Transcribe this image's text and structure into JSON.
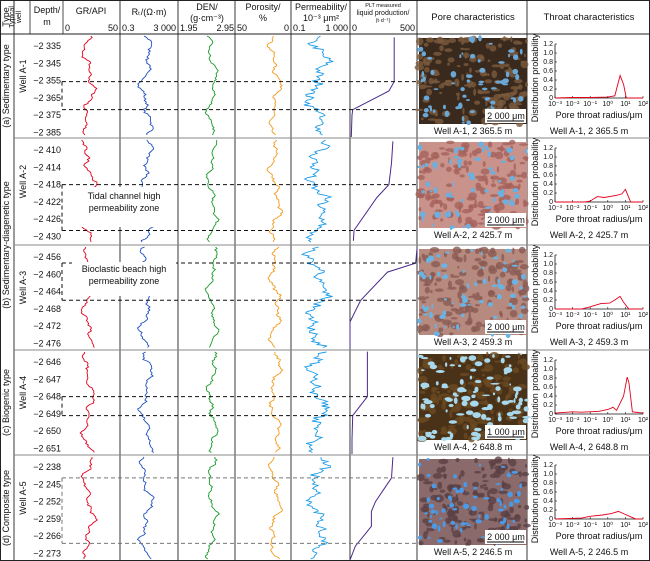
{
  "header": {
    "type": "Type",
    "typical_well_1": "Typical",
    "typical_well_2": "well",
    "depth_1": "Depth/",
    "depth_2": "m",
    "gr": "GR/API",
    "gr_min": "0",
    "gr_max": "50",
    "rt": "Rₜ/(Ω·m)",
    "rt_min": "0.3",
    "rt_max": "3 000",
    "den_1": "DEN/",
    "den_2": "(g·cm⁻³)",
    "den_min": "1.95",
    "den_max": "2.95",
    "por_1": "Porosity/",
    "por_2": "%",
    "por_min": "50",
    "por_max": "0",
    "perm_1": "Permeability/",
    "perm_2": "10⁻³ μm²",
    "perm_min": "0.1",
    "perm_max": "1 000",
    "plt_1": "PLT measured",
    "plt_2": "liquid production/",
    "plt_3": "(t·d⁻¹)",
    "plt_min": "0",
    "plt_max": "500",
    "pore": "Pore characteristics",
    "throat": "Throat characteristics"
  },
  "colors": {
    "gr": "#e3001b",
    "rt": "#1f4fbf",
    "den": "#1a9a2a",
    "por": "#f39a1e",
    "perm": "#1a9ae8",
    "plt": "#4b2a8c",
    "throat": "#e3001b"
  },
  "sections": [
    {
      "type": "(a) Sedimentary type",
      "well": "Well A-1",
      "ticks": [
        "−2 335",
        "−2 345",
        "−2 355",
        "−2 365",
        "−2 375",
        "−2 385"
      ],
      "tick_values": [
        2335,
        2345,
        2355,
        2365,
        2375,
        2385
      ],
      "zone": [
        2355.6,
        2371.8
      ],
      "plt": [
        [
          2330,
          330
        ],
        [
          2355.6,
          330
        ],
        [
          2361,
          290
        ],
        [
          2371.8,
          20
        ],
        [
          2375,
          15
        ],
        [
          2388,
          10
        ]
      ],
      "photo": {
        "base": "#3a2a1e",
        "grain": "#7a5a3c",
        "pore": "#6aa8d8",
        "scale": "2 000 μm"
      },
      "caption": "Well A-1, 2 365.5 m",
      "throat": [
        [
          -3,
          0
        ],
        [
          -2,
          0.01
        ],
        [
          -1,
          0.01
        ],
        [
          0,
          0.02
        ],
        [
          0.4,
          0.05
        ],
        [
          0.7,
          0.5
        ],
        [
          0.9,
          0.3
        ],
        [
          1.05,
          0
        ],
        [
          2,
          0
        ]
      ]
    },
    {
      "type": "(b) Sedimentary-diagenetic type",
      "well": "Well A-2",
      "ticks": [
        "−2 410",
        "−2 414",
        "−2 418",
        "−2 422",
        "−2 426",
        "−2 430"
      ],
      "tick_values": [
        2410,
        2414,
        2418,
        2422,
        2426,
        2430
      ],
      "zone": [
        2418,
        2428.6
      ],
      "annotation": [
        "Tidal channel high",
        "permeability zone"
      ],
      "plt": [
        [
          2408,
          320
        ],
        [
          2413,
          310
        ],
        [
          2418,
          290
        ],
        [
          2421,
          200
        ],
        [
          2428.6,
          30
        ],
        [
          2431,
          25
        ]
      ],
      "photo": {
        "base": "#c9928a",
        "grain": "#a5625a",
        "pore": "#6ab0e0",
        "scale": "2 000 μm"
      },
      "caption": "Well A-2, 2 425.7 m",
      "throat": [
        [
          -3,
          0
        ],
        [
          -1.3,
          0
        ],
        [
          -1,
          0.02
        ],
        [
          -0.6,
          0.12
        ],
        [
          -0.2,
          0.1
        ],
        [
          0.5,
          0.15
        ],
        [
          0.8,
          0.18
        ],
        [
          1.0,
          0.28
        ],
        [
          1.3,
          0
        ],
        [
          2,
          0
        ]
      ]
    },
    {
      "type": "",
      "well": "Well A-3",
      "ticks": [
        "−2 456",
        "−2 460",
        "−2 464",
        "−2 468",
        "−2 472",
        "−2 476"
      ],
      "tick_values": [
        2456,
        2460,
        2464,
        2468,
        2472,
        2476
      ],
      "zone": [
        2457.4,
        2466
      ],
      "annotation": [
        "Bioclastic beach high",
        "permeability zone"
      ],
      "plt": [
        [
          2454,
          500
        ],
        [
          2457.4,
          490
        ],
        [
          2459.5,
          280
        ],
        [
          2466,
          80
        ],
        [
          2471,
          0
        ],
        [
          2478,
          0
        ]
      ],
      "photo": {
        "base": "#b78a80",
        "grain": "#8a5a52",
        "pore": "#6ab4e4",
        "scale": "2 000 μm"
      },
      "caption": "Well A-3, 2 459.3 m",
      "throat": [
        [
          -3,
          0
        ],
        [
          -1.5,
          0
        ],
        [
          -1,
          0.05
        ],
        [
          -0.4,
          0.12
        ],
        [
          0.1,
          0.13
        ],
        [
          0.4,
          0.2
        ],
        [
          0.7,
          0.28
        ],
        [
          0.9,
          0.15
        ],
        [
          1.2,
          0
        ],
        [
          2,
          0
        ]
      ]
    },
    {
      "type": "(c) Biogenic type",
      "well": "Well A-4",
      "ticks": [
        "−2 646",
        "−2 647",
        "−2 648",
        "−2 649",
        "−2 650",
        "−2 651"
      ],
      "tick_values": [
        2646,
        2647,
        2648,
        2649,
        2650,
        2651
      ],
      "zone": [
        2648,
        2649.1
      ],
      "plt": [
        [
          2645.4,
          130
        ],
        [
          2648,
          130
        ],
        [
          2649.1,
          20
        ],
        [
          2650.5,
          15
        ],
        [
          2651.5,
          15
        ]
      ],
      "photo": {
        "base": "#4a3218",
        "grain": "#6b4a22",
        "pore": "#a8d8ec",
        "scale": "1 000 μm"
      },
      "caption": "Well A-4, 2 648.8 m",
      "throat": [
        [
          -3,
          0.02
        ],
        [
          -2,
          0.05
        ],
        [
          -1.5,
          0.04
        ],
        [
          -0.5,
          0.06
        ],
        [
          0,
          0.1
        ],
        [
          0.3,
          0.15
        ],
        [
          0.5,
          0.08
        ],
        [
          0.9,
          0.4
        ],
        [
          1.1,
          0.82
        ],
        [
          1.2,
          0.7
        ],
        [
          1.4,
          0.05
        ],
        [
          2,
          0.02
        ]
      ]
    },
    {
      "type": "(d) Composite type",
      "well": "Well A-5",
      "ticks": [
        "−2 238",
        "−2 245",
        "−2 252",
        "−2 259",
        "−2 266",
        "−2 273"
      ],
      "tick_values": [
        2238,
        2245,
        2252,
        2259,
        2266,
        2273
      ],
      "zone": [
        2242.4,
        2268.9
      ],
      "plt": [
        [
          2234,
          320
        ],
        [
          2242.4,
          310
        ],
        [
          2252,
          190
        ],
        [
          2256,
          160
        ],
        [
          2262,
          160
        ],
        [
          2270,
          40
        ],
        [
          2276,
          0
        ]
      ],
      "photo": {
        "base": "#8a6a6a",
        "grain": "#5a4044",
        "pore": "#4a9ae8",
        "scale": "2 000 μm"
      },
      "caption": "Well A-5, 2 246.5 m",
      "throat": [
        [
          -3,
          0
        ],
        [
          -1.5,
          0.02
        ],
        [
          -1,
          0.06
        ],
        [
          -0.3,
          0.09
        ],
        [
          0.2,
          0.12
        ],
        [
          0.6,
          0.17
        ],
        [
          1.0,
          0.1
        ],
        [
          1.3,
          0.05
        ],
        [
          1.6,
          0
        ],
        [
          2,
          0
        ]
      ]
    }
  ],
  "section_b_label": "(b) Sedimentary-diagenetic type",
  "chart_data": {
    "type": "line",
    "title": "Throat characteristics",
    "xlabel": "Pore throat radius/μm",
    "ylabel": "Distribution probability",
    "x_scale": "log10",
    "xlim": [
      -3,
      2
    ],
    "ylim": [
      0,
      1.2
    ],
    "x_tick_labels": [
      "10⁻³",
      "10⁻²",
      "10⁻¹",
      "10⁰",
      "10¹",
      "10²"
    ],
    "y_tick_labels": [
      "0",
      "0.2",
      "0.4",
      "0.6",
      "0.8",
      "1.0",
      "1.2"
    ]
  }
}
